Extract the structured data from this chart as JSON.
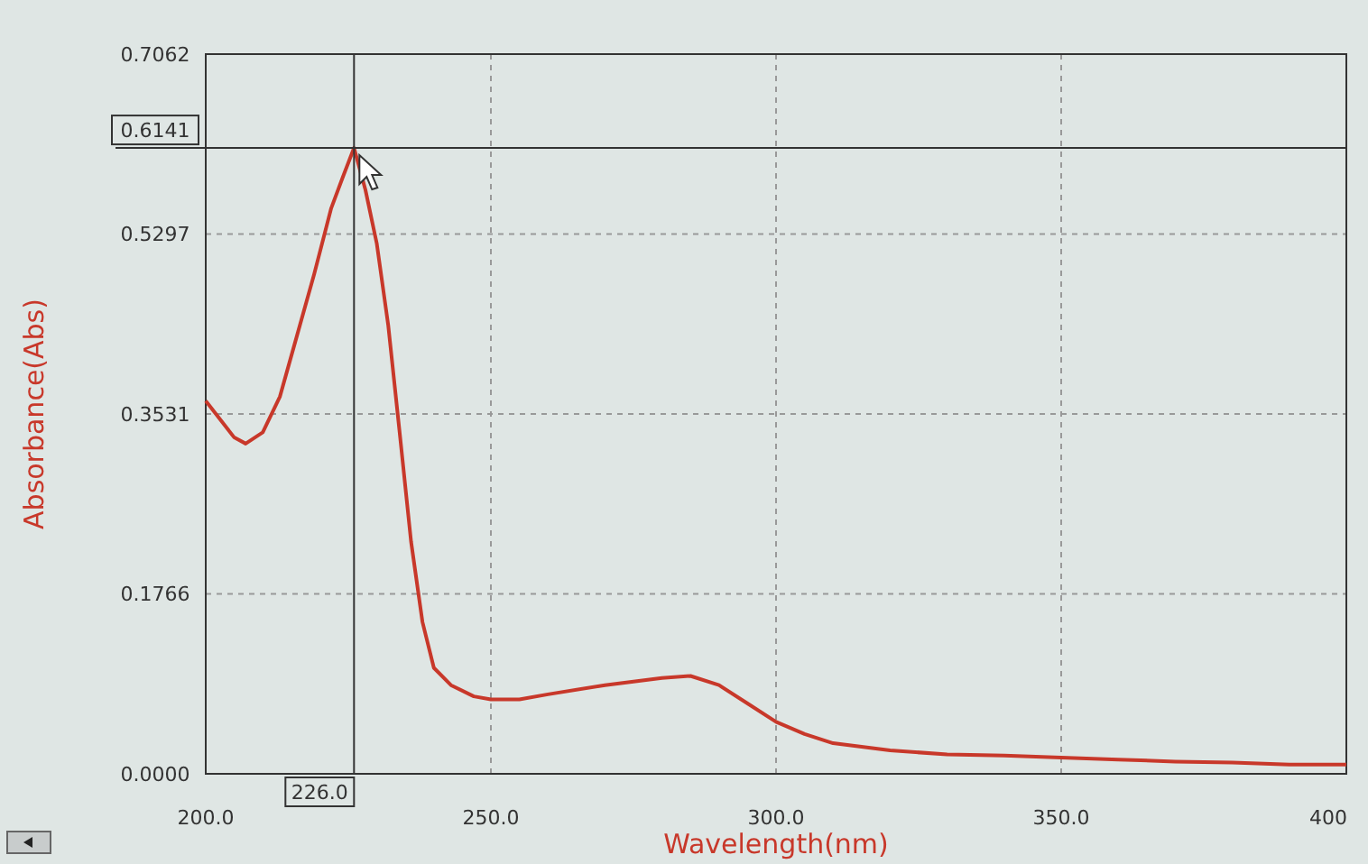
{
  "chart_data": {
    "type": "line",
    "xlabel": "Wavelength(nm)",
    "ylabel": "Absorbance(Abs)",
    "x": [
      200,
      205,
      207,
      210,
      213,
      216,
      219,
      222,
      224,
      226,
      228,
      230,
      232,
      234,
      236,
      238,
      240,
      243,
      247,
      250,
      255,
      260,
      270,
      280,
      285,
      290,
      295,
      300,
      305,
      310,
      320,
      330,
      340,
      350,
      360,
      370,
      380,
      390,
      400
    ],
    "series": [
      {
        "color": "#c8382a",
        "values": [
          0.366,
          0.33,
          0.324,
          0.335,
          0.37,
          0.43,
          0.49,
          0.555,
          0.585,
          0.6141,
          0.573,
          0.52,
          0.44,
          0.335,
          0.228,
          0.149,
          0.104,
          0.087,
          0.076,
          0.073,
          0.073,
          0.078,
          0.087,
          0.094,
          0.096,
          0.087,
          0.069,
          0.051,
          0.039,
          0.03,
          0.023,
          0.019,
          0.018,
          0.016,
          0.014,
          0.012,
          0.011,
          0.009,
          0.009
        ]
      }
    ],
    "xlim": [
      200,
      400
    ],
    "ylim": [
      0,
      0.7062
    ],
    "xticks": [
      {
        "value": 200,
        "label": "200.0"
      },
      {
        "value": 250,
        "label": "250.0"
      },
      {
        "value": 300,
        "label": "300.0"
      },
      {
        "value": 350,
        "label": "350.0"
      },
      {
        "value": 400,
        "label": "400"
      }
    ],
    "yticks": [
      {
        "value": 0,
        "label": "0.0000"
      },
      {
        "value": 0.1766,
        "label": "0.1766"
      },
      {
        "value": 0.3531,
        "label": "0.3531"
      },
      {
        "value": 0.5297,
        "label": "0.5297"
      },
      {
        "value": 0.7062,
        "label": "0.7062"
      }
    ],
    "grid": true,
    "line_style": "solid",
    "marker": "none",
    "ref_lines": [
      {
        "axis": "x",
        "value": 226,
        "label": "226.0",
        "color": "#333333"
      },
      {
        "axis": "y",
        "value": 0.6141,
        "label": "0.6141",
        "color": "#333333"
      }
    ]
  }
}
